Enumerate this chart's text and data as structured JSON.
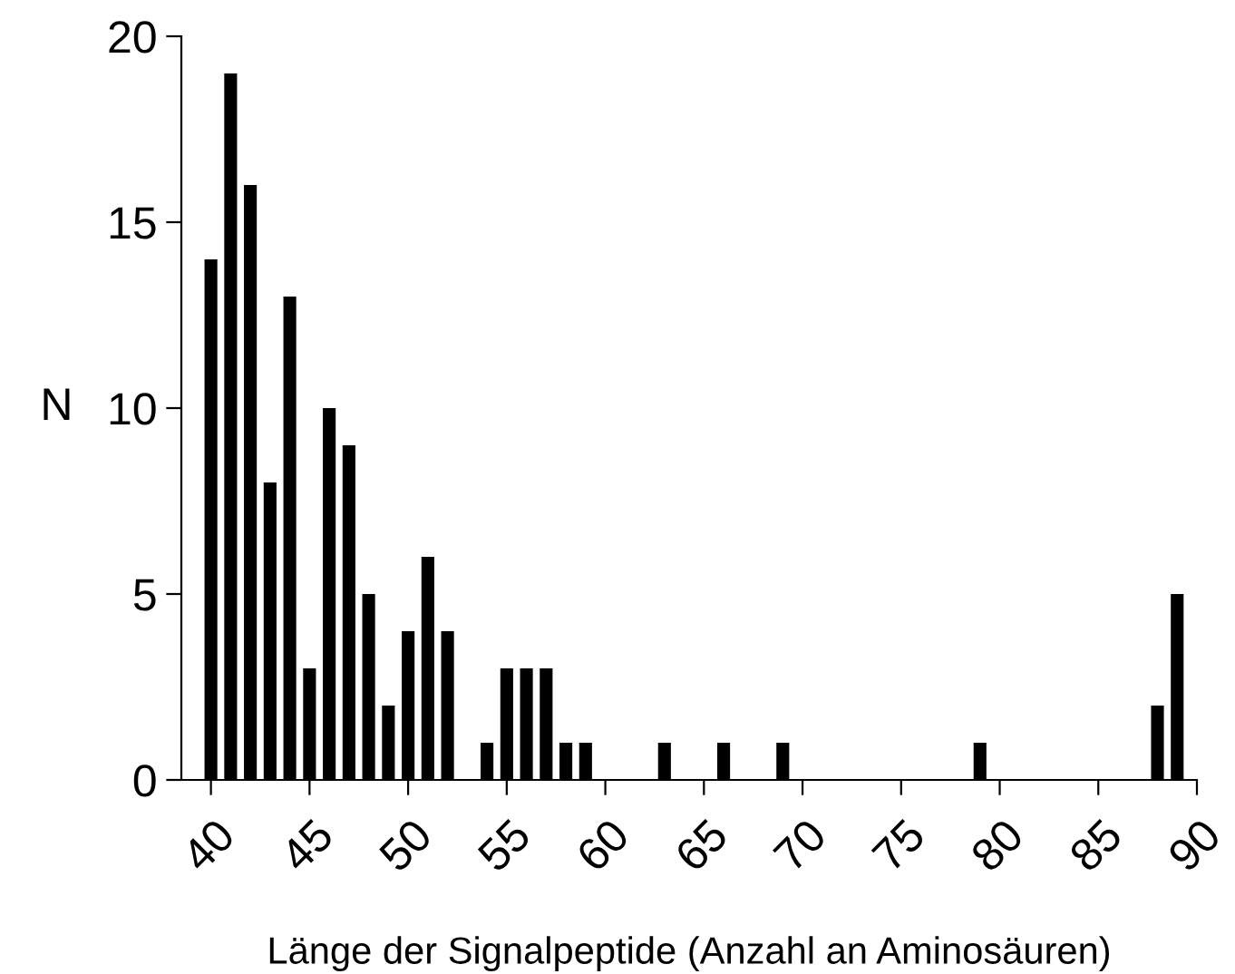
{
  "chart_data": {
    "type": "bar",
    "xlabel": "Länge der Signalpeptide (Anzahl an Aminosäuren)",
    "ylabel": "N",
    "x": [
      40,
      41,
      42,
      43,
      44,
      45,
      46,
      47,
      48,
      49,
      50,
      51,
      52,
      53,
      54,
      55,
      56,
      57,
      58,
      59,
      60,
      61,
      62,
      63,
      64,
      65,
      66,
      67,
      68,
      69,
      70,
      71,
      72,
      73,
      74,
      75,
      76,
      77,
      78,
      79,
      80,
      81,
      82,
      83,
      84,
      85,
      86,
      87,
      88,
      89
    ],
    "values": [
      14,
      19,
      16,
      8,
      13,
      3,
      10,
      9,
      5,
      2,
      4,
      6,
      4,
      0,
      1,
      3,
      3,
      3,
      1,
      1,
      0,
      0,
      0,
      1,
      0,
      0,
      1,
      0,
      0,
      1,
      0,
      0,
      0,
      0,
      0,
      0,
      0,
      0,
      0,
      1,
      0,
      0,
      0,
      0,
      0,
      0,
      0,
      0,
      2,
      5
    ],
    "color": "#000000",
    "xlim": [
      38.5,
      90
    ],
    "xticks": [
      40,
      45,
      50,
      55,
      60,
      65,
      70,
      75,
      80,
      85,
      90
    ],
    "ylim": [
      0,
      20
    ],
    "yticks": [
      0,
      5,
      10,
      15,
      20
    ],
    "grid": false,
    "legend": false
  }
}
